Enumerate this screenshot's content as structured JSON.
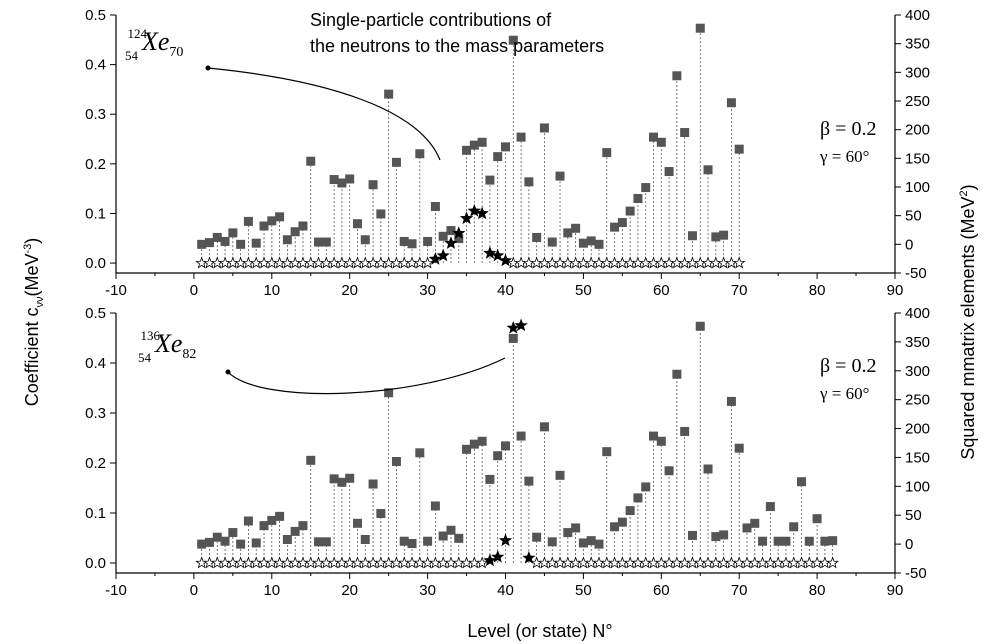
{
  "chart_data": [
    {
      "type": "scatter",
      "title": "Single-particle contributions of the neutrons to the mass parameters",
      "nucleus": {
        "mass": "124",
        "z": "54",
        "symbol": "Xe",
        "n": "70"
      },
      "beta_label": "β = 0.2",
      "gamma_label": "γ = 60°",
      "xlim": [
        -10,
        90
      ],
      "ylim": [
        -0.02,
        0.5
      ],
      "y2lim": [
        -50,
        400
      ],
      "x_ticks": [
        "-10",
        "0",
        "10",
        "20",
        "30",
        "40",
        "50",
        "60",
        "70",
        "80",
        "90"
      ],
      "y_ticks": [
        "0.0",
        "0.1",
        "0.2",
        "0.3",
        "0.4",
        "0.5"
      ],
      "y2_ticks": [
        "-50",
        "0",
        "50",
        "100",
        "150",
        "200",
        "250",
        "300",
        "350",
        "400"
      ],
      "series": [
        {
          "marker": "square",
          "axis": "right",
          "x": [
            1,
            2,
            3,
            4,
            5,
            6,
            7,
            8,
            9,
            10,
            11,
            12,
            13,
            14,
            15,
            16,
            17,
            18,
            19,
            20,
            21,
            22,
            23,
            24,
            25,
            26,
            27,
            28,
            29,
            30,
            31,
            32,
            33,
            34,
            35,
            36,
            37,
            38,
            39,
            40,
            41,
            42,
            43,
            44,
            45,
            46,
            47,
            48,
            49,
            50,
            51,
            52,
            53,
            54,
            55,
            56,
            57,
            58,
            59,
            60,
            61,
            62,
            63,
            64,
            65,
            66,
            67,
            68,
            69,
            70
          ],
          "y": [
            0,
            3,
            12,
            5,
            20,
            0,
            40,
            2,
            32,
            41,
            48,
            8,
            22,
            32,
            145,
            4,
            4,
            113,
            107,
            114,
            36,
            8,
            104,
            53,
            262,
            143,
            5,
            1,
            158,
            5,
            66,
            14,
            24,
            10,
            164,
            173,
            178,
            112,
            153,
            170,
            356,
            187,
            109,
            12,
            203,
            4,
            119,
            20,
            28,
            2,
            6,
            0,
            160,
            30,
            38,
            58,
            80,
            99,
            187,
            178,
            127,
            294,
            195,
            15,
            377,
            130,
            13,
            16,
            247,
            166
          ]
        },
        {
          "marker": "star",
          "axis": "left",
          "x": [
            31,
            32,
            33,
            34,
            35,
            36,
            37,
            38,
            39,
            40
          ],
          "y": [
            0.008,
            0.015,
            0.04,
            0.06,
            0.09,
            0.105,
            0.1,
            0.02,
            0.015,
            0.005
          ]
        }
      ]
    },
    {
      "type": "scatter",
      "nucleus": {
        "mass": "136",
        "z": "54",
        "symbol": "Xe",
        "n": "82"
      },
      "beta_label": "β = 0.2",
      "gamma_label": "γ = 60°",
      "xlim": [
        -10,
        90
      ],
      "ylim": [
        -0.02,
        0.5
      ],
      "y2lim": [
        -50,
        400
      ],
      "x_ticks": [
        "-10",
        "0",
        "10",
        "20",
        "30",
        "40",
        "50",
        "60",
        "70",
        "80",
        "90"
      ],
      "y_ticks": [
        "0.0",
        "0.1",
        "0.2",
        "0.3",
        "0.4",
        "0.5"
      ],
      "y2_ticks": [
        "-50",
        "0",
        "50",
        "100",
        "150",
        "200",
        "250",
        "300",
        "350",
        "400"
      ],
      "series": [
        {
          "marker": "square",
          "axis": "right",
          "x": [
            1,
            2,
            3,
            4,
            5,
            6,
            7,
            8,
            9,
            10,
            11,
            12,
            13,
            14,
            15,
            16,
            17,
            18,
            19,
            20,
            21,
            22,
            23,
            24,
            25,
            26,
            27,
            28,
            29,
            30,
            31,
            32,
            33,
            34,
            35,
            36,
            37,
            38,
            39,
            40,
            41,
            42,
            43,
            44,
            45,
            46,
            47,
            48,
            49,
            50,
            51,
            52,
            53,
            54,
            55,
            56,
            57,
            58,
            59,
            60,
            61,
            62,
            63,
            64,
            65,
            66,
            67,
            68,
            69,
            70,
            71,
            72,
            73,
            74,
            75,
            76,
            77,
            78,
            79,
            80,
            81,
            82
          ],
          "y": [
            0,
            3,
            12,
            5,
            20,
            0,
            40,
            2,
            32,
            41,
            48,
            8,
            22,
            32,
            145,
            4,
            4,
            113,
            107,
            114,
            36,
            8,
            104,
            53,
            262,
            143,
            5,
            1,
            158,
            5,
            66,
            14,
            24,
            10,
            164,
            173,
            178,
            112,
            153,
            170,
            356,
            187,
            109,
            12,
            203,
            4,
            119,
            20,
            28,
            2,
            6,
            0,
            160,
            30,
            38,
            58,
            80,
            99,
            187,
            178,
            127,
            294,
            195,
            15,
            377,
            130,
            13,
            16,
            247,
            166,
            28,
            36,
            5,
            65,
            5,
            5,
            30,
            108,
            5,
            44,
            5,
            6
          ]
        },
        {
          "marker": "star",
          "axis": "left",
          "x": [
            38,
            39,
            40,
            41,
            42,
            43
          ],
          "y": [
            0.005,
            0.012,
            0.045,
            0.47,
            0.475,
            0.01
          ]
        }
      ]
    }
  ],
  "labels": {
    "y_left": "Coefficient c",
    "y_left_sub": "νν",
    "y_left_unit": "(MeV",
    "y_left_exp": "-3",
    "y_right": "Squared mmatrix elements (MeV",
    "y_right_exp": "2",
    "x": "Level (or state)  N°",
    "title_line1": "Single-particle contributions of",
    "title_line2": "the neutrons to the mass parameters"
  }
}
